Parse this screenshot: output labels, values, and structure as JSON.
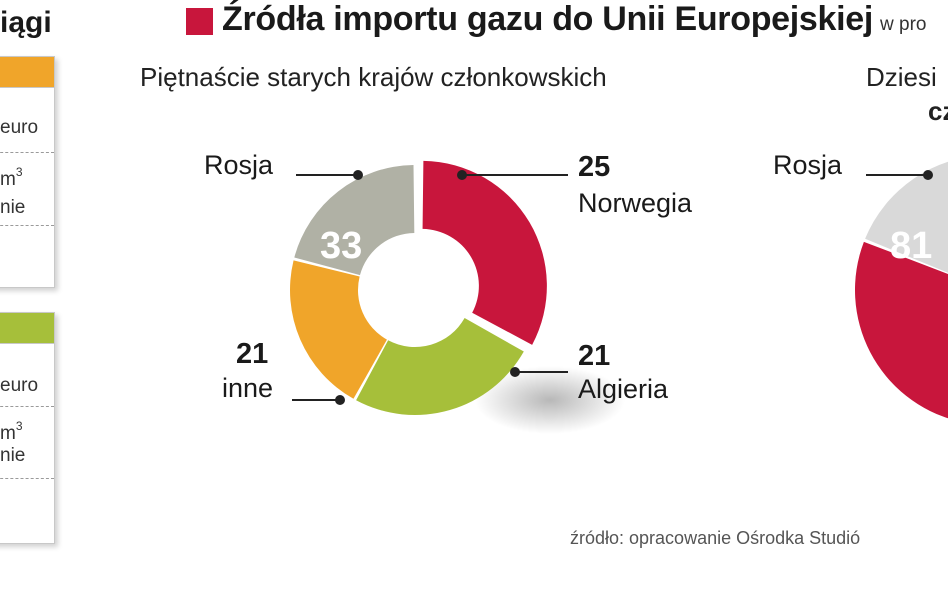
{
  "left_panel": {
    "title_fragment": "iągi",
    "panel1": {
      "row1": "euro",
      "row2": "m",
      "row2_sup": "3",
      "row3": "nie",
      "accent": "#f0a52a"
    },
    "panel2": {
      "row1": "euro",
      "row2": "m",
      "row2_sup": "3",
      "row3": "nie",
      "accent": "#a6bf3a"
    }
  },
  "header": {
    "title": "Źródła importu gazu do Unii Europejskiej",
    "unit": "w pro"
  },
  "colors": {
    "accent": "#c8163c",
    "Rosja": "#c8163c",
    "Norwegia": "#a6bf3a",
    "Algieria": "#f0a52a",
    "inne": "#b0b1a5"
  },
  "chart_data": [
    {
      "type": "pie",
      "subtitle": "Piętnaście starych krajów członkowskich",
      "slices": [
        {
          "label": "Rosja",
          "value": 33
        },
        {
          "label": "Norwegia",
          "value": 25
        },
        {
          "label": "Algieria",
          "value": 21
        },
        {
          "label": "inne",
          "value": 21
        }
      ]
    },
    {
      "type": "pie",
      "subtitle_line1": "Dziesi",
      "subtitle_line2": "cz",
      "slices": [
        {
          "label": "Rosja",
          "value": 81
        }
      ]
    }
  ],
  "source": "źródło: opracowanie Ośrodka Studió"
}
